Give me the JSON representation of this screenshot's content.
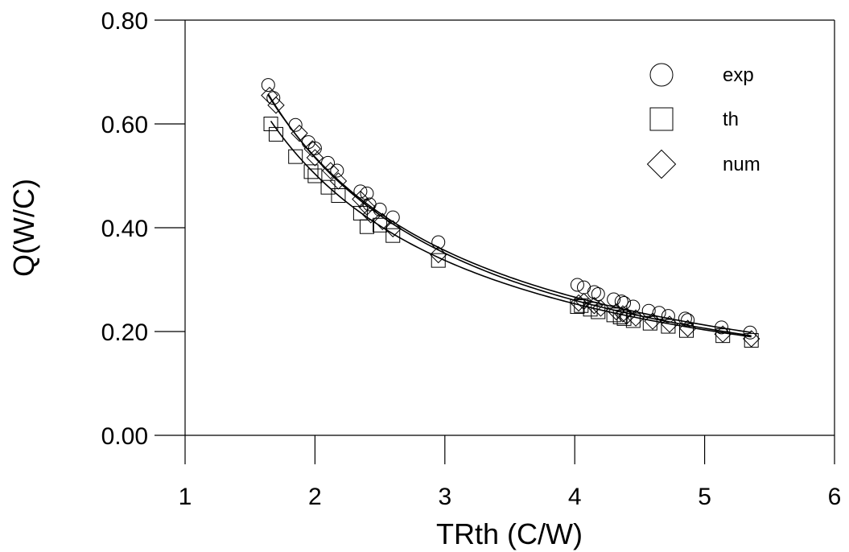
{
  "chart_data": {
    "type": "scatter",
    "xlabel": "TRth (C/W)",
    "ylabel": "Q(W/C)",
    "xlim": [
      1,
      6
    ],
    "ylim": [
      0,
      0.8
    ],
    "x_ticks": [
      "1",
      "2",
      "3",
      "4",
      "5",
      "6"
    ],
    "y_ticks": [
      "0.00",
      "0.20",
      "0.40",
      "0.60",
      "0.80"
    ],
    "grid": false,
    "legend_placement": "top-right",
    "series": [
      {
        "name": "exp",
        "marker": "circle",
        "points": [
          [
            1.64,
            0.675
          ],
          [
            1.68,
            0.65
          ],
          [
            1.85,
            0.598
          ],
          [
            1.95,
            0.565
          ],
          [
            2.0,
            0.553
          ],
          [
            2.1,
            0.525
          ],
          [
            2.17,
            0.51
          ],
          [
            2.35,
            0.47
          ],
          [
            2.4,
            0.466
          ],
          [
            2.42,
            0.445
          ],
          [
            2.5,
            0.435
          ],
          [
            2.6,
            0.42
          ],
          [
            2.95,
            0.372
          ],
          [
            4.02,
            0.29
          ],
          [
            4.07,
            0.285
          ],
          [
            4.15,
            0.276
          ],
          [
            4.18,
            0.272
          ],
          [
            4.3,
            0.262
          ],
          [
            4.36,
            0.258
          ],
          [
            4.38,
            0.255
          ],
          [
            4.45,
            0.248
          ],
          [
            4.57,
            0.24
          ],
          [
            4.65,
            0.236
          ],
          [
            4.72,
            0.23
          ],
          [
            4.85,
            0.225
          ],
          [
            4.87,
            0.222
          ],
          [
            5.13,
            0.208
          ],
          [
            5.35,
            0.198
          ]
        ]
      },
      {
        "name": "th",
        "marker": "square",
        "points": [
          [
            1.66,
            0.6
          ],
          [
            1.7,
            0.58
          ],
          [
            1.85,
            0.537
          ],
          [
            1.97,
            0.508
          ],
          [
            2.0,
            0.5
          ],
          [
            2.1,
            0.478
          ],
          [
            2.18,
            0.462
          ],
          [
            2.35,
            0.428
          ],
          [
            2.4,
            0.402
          ],
          [
            2.5,
            0.405
          ],
          [
            2.6,
            0.385
          ],
          [
            2.95,
            0.337
          ],
          [
            4.02,
            0.248
          ],
          [
            4.05,
            0.25
          ],
          [
            4.12,
            0.243
          ],
          [
            4.18,
            0.238
          ],
          [
            4.3,
            0.232
          ],
          [
            4.35,
            0.228
          ],
          [
            4.38,
            0.225
          ],
          [
            4.45,
            0.221
          ],
          [
            4.58,
            0.216
          ],
          [
            4.72,
            0.21
          ],
          [
            4.86,
            0.202
          ],
          [
            5.14,
            0.192
          ],
          [
            5.36,
            0.183
          ]
        ]
      },
      {
        "name": "num",
        "marker": "diamond",
        "points": [
          [
            1.65,
            0.655
          ],
          [
            1.7,
            0.636
          ],
          [
            1.88,
            0.582
          ],
          [
            1.98,
            0.552
          ],
          [
            2.0,
            0.535
          ],
          [
            2.12,
            0.51
          ],
          [
            2.18,
            0.49
          ],
          [
            2.35,
            0.455
          ],
          [
            2.4,
            0.44
          ],
          [
            2.43,
            0.425
          ],
          [
            2.52,
            0.412
          ],
          [
            2.6,
            0.398
          ],
          [
            2.95,
            0.348
          ],
          [
            4.03,
            0.255
          ],
          [
            4.07,
            0.258
          ],
          [
            4.15,
            0.25
          ],
          [
            4.2,
            0.245
          ],
          [
            4.32,
            0.238
          ],
          [
            4.37,
            0.234
          ],
          [
            4.4,
            0.23
          ],
          [
            4.47,
            0.226
          ],
          [
            4.6,
            0.22
          ],
          [
            4.73,
            0.214
          ],
          [
            4.87,
            0.206
          ],
          [
            5.14,
            0.195
          ],
          [
            5.36,
            0.186
          ]
        ]
      }
    ],
    "fit_curves": [
      {
        "series": "exp",
        "a": 1.1,
        "b": 1.04,
        "x_range": [
          1.64,
          5.36
        ]
      },
      {
        "series": "num",
        "a": 1.08,
        "b": 1.01,
        "x_range": [
          1.64,
          5.36
        ]
      },
      {
        "series": "th",
        "a": 1.0,
        "b": 0.99,
        "x_range": [
          1.66,
          5.36
        ]
      }
    ]
  }
}
